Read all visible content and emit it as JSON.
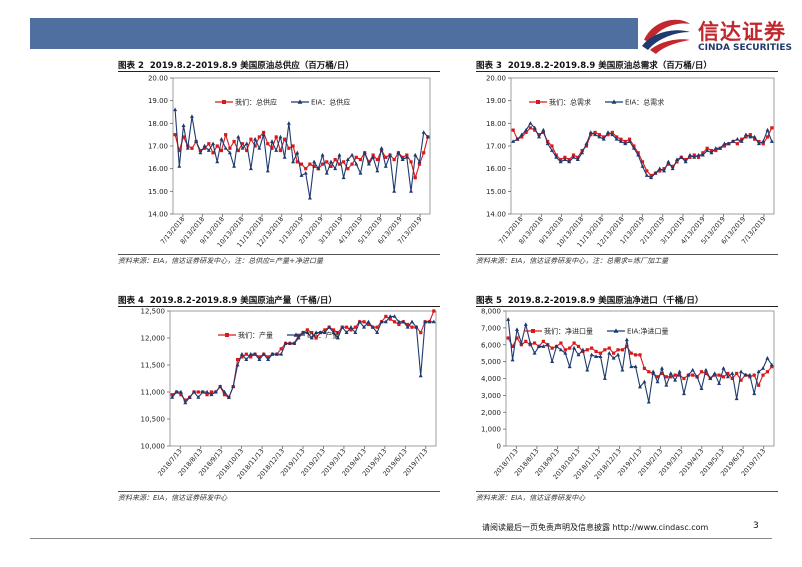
{
  "header": {
    "logo_cn": "信达证券",
    "logo_en": "CINDA SECURITIES",
    "colors": {
      "bar": "#4f6fa1",
      "logo_red": "#c1272d",
      "logo_blue": "#1f3a6e"
    }
  },
  "footer": {
    "text": "请阅读最后一页免责声明及信息披露 http://www.cindasc.com",
    "page": "3"
  },
  "chart_data": [
    {
      "id": "c2",
      "type": "line",
      "figure_no": "图表 2",
      "title": "2019.8.2-2019.8.9 美国原油总供应（百万桶/日）",
      "source": "资料来源：EIA，信达证券研发中心，注：总供应=产量+净进口量",
      "ylim": [
        14.0,
        20.0
      ],
      "yticks": [
        14.0,
        15.0,
        16.0,
        17.0,
        18.0,
        19.0,
        20.0
      ],
      "ytick_labels": [
        "14.00",
        "15.00",
        "16.00",
        "17.00",
        "18.00",
        "19.00",
        "20.00"
      ],
      "xtick_labels": [
        "7/13/2018",
        "8/13/2018",
        "9/13/2018",
        "10/13/2018",
        "11/13/2018",
        "12/13/2018",
        "1/13/2019",
        "2/13/2019",
        "3/13/2019",
        "4/13/2019",
        "5/13/2019",
        "6/13/2019",
        "7/13/2019"
      ],
      "legend_position": "top-left",
      "series": [
        {
          "name": "我们：总供应",
          "color": "#d7191c",
          "marker": "square",
          "values": [
            17.5,
            16.8,
            17.4,
            17.0,
            16.9,
            17.2,
            16.8,
            16.9,
            17.1,
            16.7,
            17.0,
            16.8,
            17.5,
            16.9,
            17.2,
            16.8,
            17.1,
            16.8,
            17.3,
            17.0,
            17.4,
            17.6,
            17.1,
            16.9,
            17.4,
            16.8,
            17.3,
            16.9,
            17.0,
            16.3,
            16.2,
            16.0,
            16.2,
            16.1,
            16.0,
            16.2,
            16.3,
            16.1,
            16.4,
            16.2,
            16.3,
            16.0,
            16.2,
            16.5,
            16.4,
            16.7,
            16.3,
            16.6,
            16.4,
            16.8,
            16.5,
            16.6,
            16.4,
            16.7,
            16.5,
            16.6,
            16.3,
            15.6,
            16.2,
            16.7,
            17.4
          ]
        },
        {
          "name": "EIA：总供应",
          "color": "#1f3a6e",
          "marker": "triangle",
          "values": [
            18.6,
            16.1,
            17.9,
            16.9,
            18.3,
            17.2,
            16.7,
            17.0,
            16.8,
            17.1,
            16.3,
            17.3,
            16.9,
            16.7,
            16.1,
            17.4,
            16.9,
            17.1,
            16.0,
            17.3,
            16.9,
            17.5,
            15.9,
            17.2,
            16.8,
            17.4,
            16.5,
            18.0,
            16.3,
            16.7,
            15.7,
            15.8,
            14.7,
            16.3,
            16.0,
            16.6,
            15.8,
            16.3,
            16.0,
            16.6,
            15.6,
            16.4,
            16.6,
            16.2,
            15.8,
            16.7,
            16.2,
            16.5,
            15.9,
            16.9,
            16.1,
            16.6,
            15.0,
            16.7,
            16.4,
            16.5,
            15.0,
            16.6,
            16.3,
            17.6,
            17.4
          ]
        }
      ]
    },
    {
      "id": "c3",
      "type": "line",
      "figure_no": "图表 3",
      "title": "2019.8.2-2019.8.9 美国原油总需求（百万桶/日）",
      "source": "资料来源：EIA，信达证券研发中心，注：总需求=炼厂加工量",
      "ylim": [
        14.0,
        20.0
      ],
      "yticks": [
        14.0,
        15.0,
        16.0,
        17.0,
        18.0,
        19.0,
        20.0
      ],
      "ytick_labels": [
        "14.00",
        "15.00",
        "16.00",
        "17.00",
        "18.00",
        "19.00",
        "20.00"
      ],
      "xtick_labels": [
        "7/13/2018",
        "8/13/2018",
        "9/13/2018",
        "10/13/2018",
        "11/13/2018",
        "12/13/2018",
        "1/13/2019",
        "2/13/2019",
        "3/13/2019",
        "4/13/2019",
        "5/13/2019",
        "6/13/2019",
        "7/13/2019"
      ],
      "legend_position": "top-left",
      "series": [
        {
          "name": "我们：总需求",
          "color": "#d7191c",
          "marker": "square",
          "values": [
            17.7,
            17.3,
            17.4,
            17.6,
            17.8,
            17.7,
            17.5,
            17.6,
            17.2,
            17.0,
            16.6,
            16.4,
            16.5,
            16.4,
            16.6,
            16.5,
            16.8,
            17.0,
            17.5,
            17.6,
            17.5,
            17.4,
            17.5,
            17.6,
            17.4,
            17.3,
            17.2,
            17.3,
            17.0,
            16.7,
            16.3,
            15.9,
            15.7,
            15.8,
            15.9,
            16.0,
            16.2,
            16.1,
            16.3,
            16.5,
            16.4,
            16.5,
            16.6,
            16.5,
            16.7,
            16.9,
            16.8,
            16.8,
            16.9,
            17.0,
            17.1,
            17.2,
            17.1,
            17.3,
            17.4,
            17.5,
            17.3,
            17.2,
            17.1,
            17.4,
            17.8
          ]
        },
        {
          "name": "EIA：总需求",
          "color": "#1f3a6e",
          "marker": "triangle",
          "values": [
            17.2,
            17.3,
            17.5,
            17.7,
            18.0,
            17.8,
            17.4,
            17.7,
            17.1,
            16.8,
            16.5,
            16.3,
            16.4,
            16.3,
            16.5,
            16.4,
            16.7,
            17.1,
            17.6,
            17.5,
            17.4,
            17.3,
            17.6,
            17.5,
            17.3,
            17.2,
            17.1,
            17.2,
            16.9,
            16.6,
            16.1,
            15.7,
            15.6,
            15.8,
            16.0,
            15.9,
            16.3,
            16.0,
            16.4,
            16.5,
            16.3,
            16.6,
            16.5,
            16.6,
            16.6,
            16.8,
            16.7,
            16.9,
            16.9,
            17.1,
            17.1,
            17.2,
            17.3,
            17.2,
            17.5,
            17.4,
            17.4,
            17.1,
            17.2,
            17.7,
            17.2
          ]
        }
      ]
    },
    {
      "id": "c4",
      "type": "line",
      "figure_no": "图表 4",
      "title": "2019.8.2-2019.8.9 美国原油产量（千桶/日）",
      "source": "资料来源：EIA，信达证券研发中心",
      "ylim": [
        10000,
        12500
      ],
      "yticks": [
        10000,
        10500,
        11000,
        11500,
        12000,
        12500
      ],
      "ytick_labels": [
        "10,000",
        "10,500",
        "11,000",
        "11,500",
        "12,000",
        "12,500"
      ],
      "xtick_labels": [
        "2018/7/13",
        "2018/8/13",
        "2018/9/13",
        "2018/10/13",
        "2018/11/13",
        "2018/12/13",
        "2019/1/13",
        "2019/2/13",
        "2019/3/13",
        "2019/4/13",
        "2019/5/13",
        "2019/6/13",
        "2019/7/13"
      ],
      "legend_position": "top-left",
      "series": [
        {
          "name": "我们：产量",
          "color": "#d7191c",
          "marker": "square",
          "values": [
            10950,
            11000,
            10950,
            10850,
            10900,
            11000,
            11000,
            11000,
            10950,
            11000,
            11000,
            11100,
            10950,
            10900,
            11100,
            11600,
            11650,
            11700,
            11650,
            11700,
            11650,
            11700,
            11650,
            11700,
            11700,
            11800,
            11900,
            11900,
            11900,
            12050,
            12100,
            12150,
            12100,
            12000,
            12100,
            12150,
            12200,
            12150,
            12100,
            12200,
            12200,
            12150,
            12200,
            12300,
            12300,
            12250,
            12200,
            12200,
            12300,
            12400,
            12350,
            12300,
            12250,
            12300,
            12250,
            12200,
            12200,
            12100,
            12300,
            12300,
            12500
          ]
        },
        {
          "name": "EIA：产量",
          "color": "#1f3a6e",
          "marker": "triangle",
          "values": [
            10900,
            11000,
            11000,
            10800,
            10900,
            11000,
            10900,
            11000,
            11000,
            10950,
            11000,
            11100,
            11000,
            10900,
            11100,
            11500,
            11700,
            11600,
            11700,
            11700,
            11600,
            11700,
            11600,
            11700,
            11700,
            11700,
            11900,
            11900,
            11900,
            12000,
            12100,
            12100,
            12000,
            12100,
            12100,
            12100,
            12200,
            12100,
            12000,
            12200,
            12100,
            12200,
            12100,
            12300,
            12200,
            12300,
            12200,
            12100,
            12300,
            12300,
            12400,
            12400,
            12300,
            12300,
            12200,
            12300,
            12200,
            11300,
            12300,
            12300,
            12300
          ]
        }
      ]
    },
    {
      "id": "c5",
      "type": "line",
      "figure_no": "图表 5",
      "title": "2019.8.2-2019.8.9 美国原油净进口（千桶/日）",
      "source": "资料来源：EIA，信达证券研发中心",
      "ylim": [
        0,
        8000
      ],
      "yticks": [
        0,
        1000,
        2000,
        3000,
        4000,
        5000,
        6000,
        7000,
        8000
      ],
      "ytick_labels": [
        "0",
        "1,000",
        "2,000",
        "3,000",
        "4,000",
        "5,000",
        "6,000",
        "7,000",
        "8,000"
      ],
      "xtick_labels": [
        "2018/7/13",
        "2018/8/13",
        "2018/9/13",
        "2018/10/13",
        "2018/11/13",
        "2018/12/13",
        "2019/1/13",
        "2019/2/13",
        "2019/3/13",
        "2019/4/13",
        "2019/5/13",
        "2019/6/13",
        "2019/7/13"
      ],
      "legend_position": "top-left",
      "series": [
        {
          "name": "我们：净进口量",
          "color": "#d7191c",
          "marker": "square",
          "values": [
            6400,
            5900,
            6400,
            6000,
            6200,
            6000,
            6100,
            5900,
            6200,
            6000,
            5800,
            5900,
            6100,
            5700,
            5800,
            6100,
            5900,
            5600,
            5700,
            5800,
            5600,
            5500,
            5700,
            5800,
            5500,
            5700,
            5700,
            5900,
            5500,
            5400,
            5400,
            4600,
            4400,
            4300,
            4100,
            4300,
            4100,
            4100,
            4200,
            4200,
            4000,
            4200,
            4200,
            4100,
            4400,
            4300,
            4000,
            4200,
            4200,
            4100,
            4300,
            4000,
            4300,
            3900,
            4200,
            4100,
            4200,
            3600,
            4200,
            4400,
            4700
          ]
        },
        {
          "name": "EIA:净进口量",
          "color": "#1f3a6e",
          "marker": "triangle",
          "values": [
            7500,
            5100,
            6900,
            6100,
            7200,
            6100,
            5500,
            5900,
            5900,
            6000,
            5000,
            5900,
            5700,
            5500,
            4700,
            5800,
            5400,
            5700,
            4500,
            5400,
            5300,
            5300,
            4000,
            5500,
            5200,
            5400,
            4500,
            6300,
            4700,
            4700,
            3500,
            3800,
            2600,
            4400,
            3800,
            4600,
            3600,
            4300,
            3900,
            4400,
            3100,
            4200,
            4500,
            4100,
            3400,
            4500,
            4000,
            4300,
            3700,
            4600,
            4100,
            4300,
            2800,
            4400,
            4200,
            4200,
            3100,
            4400,
            4600,
            5200,
            4800
          ]
        }
      ]
    }
  ]
}
